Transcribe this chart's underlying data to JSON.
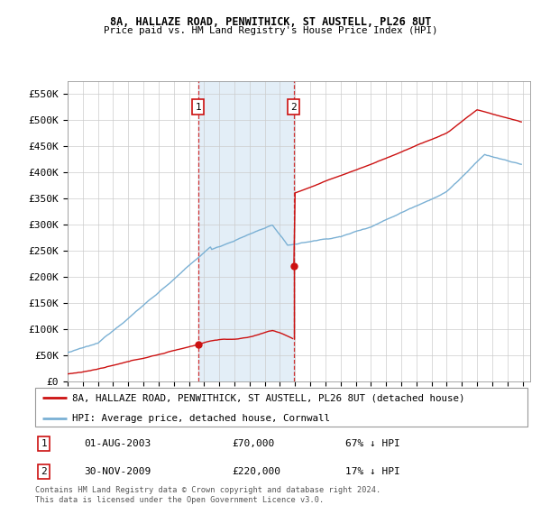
{
  "title1": "8A, HALLAZE ROAD, PENWITHICK, ST AUSTELL, PL26 8UT",
  "title2": "Price paid vs. HM Land Registry's House Price Index (HPI)",
  "ylim": [
    0,
    575000
  ],
  "yticks": [
    0,
    50000,
    100000,
    150000,
    200000,
    250000,
    300000,
    350000,
    400000,
    450000,
    500000,
    550000
  ],
  "ytick_labels": [
    "£0",
    "£50K",
    "£100K",
    "£150K",
    "£200K",
    "£250K",
    "£300K",
    "£350K",
    "£400K",
    "£450K",
    "£500K",
    "£550K"
  ],
  "hpi_color": "#7ab0d4",
  "price_color": "#cc1111",
  "vline_color": "#cc1111",
  "marker1_date": 2003.6,
  "marker1_price": 70000,
  "marker2_date": 2009.92,
  "marker2_price": 220000,
  "xlim_left": 1995.0,
  "xlim_right": 2025.5,
  "legend_property": "8A, HALLAZE ROAD, PENWITHICK, ST AUSTELL, PL26 8UT (detached house)",
  "legend_hpi": "HPI: Average price, detached house, Cornwall",
  "table_rows": [
    {
      "num": "1",
      "date": "01-AUG-2003",
      "price": "£70,000",
      "change": "67% ↓ HPI"
    },
    {
      "num": "2",
      "date": "30-NOV-2009",
      "price": "£220,000",
      "change": "17% ↓ HPI"
    }
  ],
  "footnote": "Contains HM Land Registry data © Crown copyright and database right 2024.\nThis data is licensed under the Open Government Licence v3.0."
}
